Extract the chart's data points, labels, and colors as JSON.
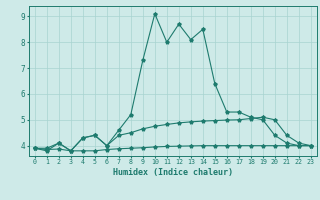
{
  "xlabel": "Humidex (Indice chaleur)",
  "x_values": [
    0,
    1,
    2,
    3,
    4,
    5,
    6,
    7,
    8,
    9,
    10,
    11,
    12,
    13,
    14,
    15,
    16,
    17,
    18,
    19,
    20,
    21,
    22,
    23
  ],
  "line1": [
    3.9,
    3.8,
    4.1,
    3.8,
    4.3,
    4.4,
    4.0,
    4.6,
    5.2,
    7.3,
    9.1,
    8.0,
    8.7,
    8.1,
    8.5,
    6.4,
    5.3,
    5.3,
    5.1,
    5.0,
    4.4,
    4.1,
    4.0,
    4.0
  ],
  "line2": [
    3.9,
    3.9,
    4.1,
    3.8,
    4.3,
    4.4,
    4.0,
    4.4,
    4.5,
    4.65,
    4.75,
    4.82,
    4.88,
    4.92,
    4.95,
    4.97,
    4.99,
    5.0,
    5.05,
    5.1,
    5.0,
    4.4,
    4.1,
    4.0
  ],
  "line3": [
    3.9,
    3.85,
    3.87,
    3.8,
    3.8,
    3.8,
    3.85,
    3.88,
    3.9,
    3.92,
    3.95,
    3.97,
    3.98,
    3.99,
    4.0,
    4.0,
    4.0,
    4.0,
    4.0,
    4.0,
    4.0,
    4.0,
    4.0,
    4.0
  ],
  "line_color": "#1e7b6e",
  "bg_color": "#ceeae8",
  "grid_color": "#a8d4d0",
  "ylim": [
    3.6,
    9.4
  ],
  "yticks": [
    4,
    5,
    6,
    7,
    8,
    9
  ],
  "xticks": [
    0,
    1,
    2,
    3,
    4,
    5,
    6,
    7,
    8,
    9,
    10,
    11,
    12,
    13,
    14,
    15,
    16,
    17,
    18,
    19,
    20,
    21,
    22,
    23
  ]
}
